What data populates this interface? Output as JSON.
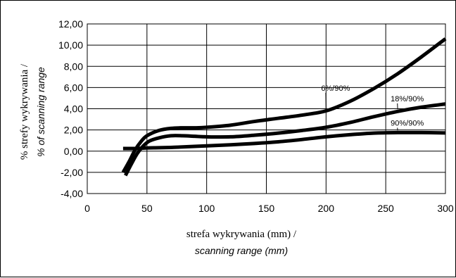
{
  "chart_data": {
    "type": "line",
    "xlabel": "strefa wykrywania (mm) /",
    "xlabel_sub": "scanning range (mm)",
    "ylabel": "% strefy wykrywania /",
    "ylabel_sub": "% of scanning range",
    "xlim": [
      0,
      300
    ],
    "ylim": [
      -4,
      12
    ],
    "xticks": [
      0,
      50,
      100,
      150,
      200,
      250,
      300
    ],
    "yticks": [
      -4,
      -2,
      0,
      2,
      4,
      6,
      8,
      10,
      12
    ],
    "xtick_labels": [
      "0",
      "50",
      "100",
      "150",
      "200",
      "250",
      "300"
    ],
    "ytick_labels": [
      "-4,00",
      "-2,00",
      "0,00",
      "2,00",
      "4,00",
      "6,00",
      "8,00",
      "10,00",
      "12,00"
    ],
    "grid": true,
    "series": [
      {
        "name": "6%/90%",
        "x": [
          30,
          35,
          40,
          45,
          50,
          60,
          70,
          80,
          90,
          100,
          120,
          140,
          160,
          180,
          200,
          220,
          240,
          260,
          280,
          300
        ],
        "y": [
          -2.0,
          -1.0,
          0.1,
          0.9,
          1.45,
          1.95,
          2.15,
          2.2,
          2.2,
          2.25,
          2.45,
          2.8,
          3.1,
          3.4,
          3.8,
          4.7,
          5.9,
          7.3,
          8.9,
          10.6
        ],
        "label_at": [
          208,
          5.7
        ]
      },
      {
        "name": "18%/90%",
        "x": [
          32,
          37,
          42,
          47,
          52,
          60,
          70,
          80,
          90,
          100,
          120,
          140,
          160,
          180,
          200,
          220,
          240,
          260,
          280,
          300
        ],
        "y": [
          -2.3,
          -1.2,
          -0.2,
          0.5,
          0.95,
          1.25,
          1.45,
          1.45,
          1.4,
          1.35,
          1.35,
          1.5,
          1.7,
          1.95,
          2.25,
          2.7,
          3.25,
          3.75,
          4.15,
          4.45
        ],
        "label_at": [
          268,
          4.7
        ]
      },
      {
        "name": "90%/90%",
        "x": [
          30,
          40,
          50,
          60,
          70,
          80,
          100,
          120,
          140,
          160,
          180,
          200,
          220,
          240,
          260,
          280,
          300
        ],
        "y": [
          0.25,
          0.25,
          0.3,
          0.32,
          0.35,
          0.4,
          0.5,
          0.6,
          0.72,
          0.88,
          1.1,
          1.35,
          1.55,
          1.7,
          1.75,
          1.75,
          1.72
        ],
        "label_at": [
          268,
          2.4
        ]
      }
    ]
  }
}
